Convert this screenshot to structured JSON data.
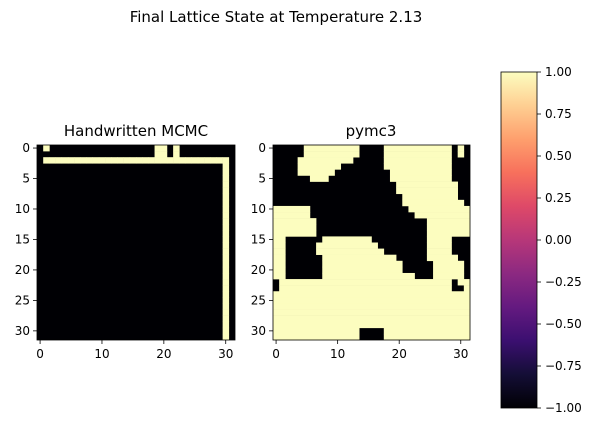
{
  "suptitle": "Final Lattice State at Temperature 2.13",
  "chart_data": [
    {
      "type": "heatmap",
      "title": "Handwritten MCMC",
      "xlabel": "",
      "ylabel": "",
      "size": 32,
      "x_ticks": [
        "0",
        "10",
        "20",
        "30"
      ],
      "y_ticks": [
        "0",
        "5",
        "10",
        "15",
        "20",
        "25",
        "30"
      ],
      "value_low": -1,
      "value_high": 1,
      "spins_up": [
        [
          0,
          1
        ],
        [
          0,
          19
        ],
        [
          0,
          20
        ],
        [
          0,
          22
        ],
        [
          1,
          19
        ],
        [
          1,
          20
        ],
        [
          1,
          22
        ],
        [
          2,
          1
        ],
        [
          2,
          2
        ],
        [
          2,
          3
        ],
        [
          2,
          4
        ],
        [
          2,
          5
        ],
        [
          2,
          6
        ],
        [
          2,
          7
        ],
        [
          2,
          8
        ],
        [
          2,
          9
        ],
        [
          2,
          10
        ],
        [
          2,
          11
        ],
        [
          2,
          12
        ],
        [
          2,
          13
        ],
        [
          2,
          14
        ],
        [
          2,
          15
        ],
        [
          2,
          16
        ],
        [
          2,
          17
        ],
        [
          2,
          18
        ],
        [
          2,
          19
        ],
        [
          2,
          20
        ],
        [
          2,
          21
        ],
        [
          2,
          22
        ],
        [
          2,
          23
        ],
        [
          2,
          24
        ],
        [
          2,
          25
        ],
        [
          2,
          26
        ],
        [
          2,
          27
        ],
        [
          2,
          28
        ],
        [
          2,
          29
        ],
        [
          2,
          30
        ],
        [
          3,
          30
        ],
        [
          4,
          30
        ],
        [
          5,
          30
        ],
        [
          6,
          30
        ],
        [
          7,
          30
        ],
        [
          8,
          30
        ],
        [
          9,
          30
        ],
        [
          10,
          30
        ],
        [
          11,
          30
        ],
        [
          12,
          30
        ],
        [
          13,
          30
        ],
        [
          14,
          30
        ],
        [
          15,
          30
        ],
        [
          16,
          30
        ],
        [
          17,
          30
        ],
        [
          18,
          30
        ],
        [
          19,
          30
        ],
        [
          20,
          30
        ],
        [
          21,
          30
        ],
        [
          22,
          30
        ],
        [
          23,
          30
        ],
        [
          24,
          30
        ],
        [
          25,
          30
        ],
        [
          26,
          30
        ],
        [
          27,
          30
        ],
        [
          28,
          30
        ],
        [
          29,
          30
        ],
        [
          30,
          30
        ],
        [
          31,
          30
        ]
      ]
    },
    {
      "type": "heatmap",
      "title": "pymc3",
      "xlabel": "",
      "ylabel": "",
      "size": 32,
      "x_ticks": [
        "0",
        "10",
        "20",
        "30"
      ],
      "y_ticks": [
        "0",
        "5",
        "10",
        "15",
        "20",
        "25",
        "30"
      ],
      "value_low": -1,
      "value_high": 1,
      "rows_up_runs": [
        [
          [
            5,
            13
          ],
          [
            18,
            28
          ],
          [
            30,
            30
          ]
        ],
        [
          [
            5,
            13
          ],
          [
            18,
            28
          ],
          [
            30,
            30
          ]
        ],
        [
          [
            4,
            12
          ],
          [
            18,
            28
          ]
        ],
        [
          [
            4,
            10
          ],
          [
            18,
            28
          ]
        ],
        [
          [
            4,
            9
          ],
          [
            19,
            28
          ]
        ],
        [
          [
            6,
            8
          ],
          [
            19,
            28
          ]
        ],
        [
          [
            20,
            29
          ]
        ],
        [
          [
            20,
            29
          ]
        ],
        [
          [
            21,
            29
          ]
        ],
        [
          [
            21,
            30
          ]
        ],
        [
          [
            0,
            5
          ],
          [
            22,
            31
          ]
        ],
        [
          [
            0,
            5
          ],
          [
            23,
            31
          ]
        ],
        [
          [
            0,
            6
          ],
          [
            25,
            31
          ]
        ],
        [
          [
            0,
            6
          ],
          [
            25,
            31
          ]
        ],
        [
          [
            0,
            6
          ],
          [
            25,
            31
          ]
        ],
        [
          [
            0,
            1
          ],
          [
            8,
            15
          ],
          [
            25,
            28
          ]
        ],
        [
          [
            0,
            1
          ],
          [
            7,
            16
          ],
          [
            25,
            28
          ]
        ],
        [
          [
            0,
            1
          ],
          [
            7,
            17
          ],
          [
            25,
            28
          ]
        ],
        [
          [
            0,
            1
          ],
          [
            8,
            19
          ],
          [
            25,
            29
          ]
        ],
        [
          [
            0,
            1
          ],
          [
            8,
            20
          ],
          [
            26,
            30
          ]
        ],
        [
          [
            0,
            1
          ],
          [
            8,
            20
          ],
          [
            26,
            30
          ]
        ],
        [
          [
            0,
            1
          ],
          [
            8,
            22
          ],
          [
            26,
            30
          ]
        ],
        [
          [
            1,
            28
          ],
          [
            30,
            31
          ]
        ],
        [
          [
            1,
            28
          ],
          [
            31,
            31
          ]
        ],
        [
          [
            0,
            31
          ]
        ],
        [
          [
            0,
            31
          ]
        ],
        [
          [
            0,
            31
          ]
        ],
        [
          [
            0,
            31
          ]
        ],
        [
          [
            0,
            31
          ]
        ],
        [
          [
            0,
            31
          ]
        ],
        [
          [
            0,
            13
          ],
          [
            18,
            31
          ]
        ],
        [
          [
            0,
            13
          ],
          [
            18,
            31
          ]
        ]
      ]
    }
  ],
  "colorbar": {
    "colormap": "magma",
    "min": -1.0,
    "max": 1.0,
    "ticks": [
      "1.00",
      "0.75",
      "0.50",
      "0.25",
      "0.00",
      "−0.25",
      "−0.50",
      "−0.75",
      "−1.00"
    ],
    "colors": [
      "#000004",
      "#140e36",
      "#3b0f70",
      "#641a80",
      "#8c2981",
      "#b73779",
      "#de4968",
      "#f7705c",
      "#fe9f6d",
      "#fecf92",
      "#fcfdbf"
    ]
  },
  "colors": {
    "up": "#fcfdbf",
    "down": "#000004",
    "axis": "#000000"
  }
}
